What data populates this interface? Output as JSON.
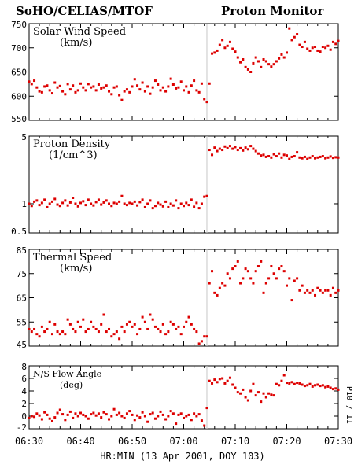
{
  "header": {
    "left_title": "SoHO/CELIAS/MTOF",
    "right_title": "Proton Monitor"
  },
  "x_axis": {
    "label": "HR:MIN (13 Apr 2001, DOY 103)",
    "ticks": [
      "06:30",
      "06:40",
      "06:50",
      "07:00",
      "07:10",
      "07:20",
      "07:30"
    ]
  },
  "side_label": "P10 / II",
  "colors": {
    "points": "#dd0000",
    "axes": "#000000",
    "marker_line": "#c8c8c8"
  },
  "chart_data": [
    {
      "type": "scatter",
      "title": "Solar Wind Speed",
      "unit_label": "(km/s)",
      "x_unit": "minutes after 06:30",
      "xlim": [
        0,
        60
      ],
      "ylim": [
        550,
        750
      ],
      "yscale": "linear",
      "yticks": [
        550,
        600,
        650,
        700,
        750
      ],
      "ytick_labels": [
        "550",
        "600",
        "650",
        "700",
        "750"
      ],
      "shock_marker_x": 34.5,
      "x": [
        0.0,
        0.5,
        1.0,
        1.5,
        2.0,
        2.5,
        3.0,
        3.5,
        4.0,
        4.5,
        5.0,
        5.5,
        6.0,
        6.5,
        7.0,
        7.5,
        8.0,
        8.5,
        9.0,
        9.5,
        10.0,
        10.5,
        11.0,
        11.5,
        12.0,
        12.5,
        13.0,
        13.5,
        14.0,
        14.5,
        15.0,
        15.5,
        16.0,
        16.5,
        17.0,
        17.5,
        18.0,
        18.5,
        19.0,
        19.5,
        20.0,
        20.5,
        21.0,
        21.5,
        22.0,
        22.5,
        23.0,
        23.5,
        24.0,
        24.5,
        25.0,
        25.5,
        26.0,
        26.5,
        27.0,
        27.5,
        28.0,
        28.5,
        29.0,
        29.5,
        30.0,
        30.5,
        31.0,
        31.5,
        32.0,
        32.5,
        33.0,
        33.5,
        34.0,
        34.5,
        35.0,
        35.5,
        36.0,
        36.5,
        37.0,
        37.5,
        38.0,
        38.5,
        39.0,
        39.5,
        40.0,
        40.5,
        41.0,
        41.5,
        42.0,
        42.5,
        43.0,
        43.5,
        44.0,
        44.5,
        45.0,
        45.5,
        46.0,
        46.5,
        47.0,
        47.5,
        48.0,
        48.5,
        49.0,
        49.5,
        50.0,
        50.5,
        51.0,
        51.5,
        52.0,
        52.5,
        53.0,
        53.5,
        54.0,
        54.5,
        55.0,
        55.5,
        56.0,
        56.5,
        57.0,
        57.5,
        58.0,
        58.5,
        59.0,
        59.5,
        60.0
      ],
      "y": [
        630,
        625,
        632,
        618,
        610,
        608,
        620,
        622,
        612,
        606,
        628,
        618,
        621,
        610,
        604,
        625,
        614,
        622,
        608,
        612,
        626,
        618,
        612,
        625,
        618,
        620,
        612,
        624,
        616,
        618,
        622,
        610,
        604,
        618,
        620,
        602,
        592,
        610,
        614,
        608,
        620,
        635,
        622,
        614,
        628,
        610,
        620,
        605,
        618,
        632,
        624,
        612,
        618,
        610,
        620,
        636,
        624,
        616,
        618,
        630,
        612,
        620,
        608,
        622,
        632,
        612,
        608,
        626,
        594,
        588,
        626,
        688,
        690,
        694,
        706,
        716,
        700,
        704,
        712,
        698,
        692,
        680,
        670,
        676,
        660,
        655,
        650,
        668,
        680,
        672,
        660,
        676,
        672,
        666,
        661,
        666,
        672,
        678,
        686,
        680,
        690,
        740,
        716,
        722,
        728,
        706,
        702,
        712,
        698,
        694,
        700,
        702,
        694,
        692,
        702,
        700,
        704,
        696,
        712,
        708,
        714
      ]
    },
    {
      "type": "scatter",
      "title": "Proton Density",
      "unit_label": "(1/cm^3)",
      "x_unit": "minutes after 06:30",
      "xlim": [
        0,
        60
      ],
      "ylim": [
        0.5,
        5
      ],
      "yscale": "log",
      "yticks": [
        0.5,
        1,
        5
      ],
      "ytick_labels": [
        "0.5",
        "1",
        "5"
      ],
      "shock_marker_x": 34.5,
      "x": [
        0.0,
        0.5,
        1.0,
        1.5,
        2.0,
        2.5,
        3.0,
        3.5,
        4.0,
        4.5,
        5.0,
        5.5,
        6.0,
        6.5,
        7.0,
        7.5,
        8.0,
        8.5,
        9.0,
        9.5,
        10.0,
        10.5,
        11.0,
        11.5,
        12.0,
        12.5,
        13.0,
        13.5,
        14.0,
        14.5,
        15.0,
        15.5,
        16.0,
        16.5,
        17.0,
        17.5,
        18.0,
        18.5,
        19.0,
        19.5,
        20.0,
        20.5,
        21.0,
        21.5,
        22.0,
        22.5,
        23.0,
        23.5,
        24.0,
        24.5,
        25.0,
        25.5,
        26.0,
        26.5,
        27.0,
        27.5,
        28.0,
        28.5,
        29.0,
        29.5,
        30.0,
        30.5,
        31.0,
        31.5,
        32.0,
        32.5,
        33.0,
        33.5,
        34.0,
        34.5,
        35.0,
        35.5,
        36.0,
        36.5,
        37.0,
        37.5,
        38.0,
        38.5,
        39.0,
        39.5,
        40.0,
        40.5,
        41.0,
        41.5,
        42.0,
        42.5,
        43.0,
        43.5,
        44.0,
        44.5,
        45.0,
        45.5,
        46.0,
        46.5,
        47.0,
        47.5,
        48.0,
        48.5,
        49.0,
        49.5,
        50.0,
        50.5,
        51.0,
        51.5,
        52.0,
        52.5,
        53.0,
        53.5,
        54.0,
        54.5,
        55.0,
        55.5,
        56.0,
        56.5,
        57.0,
        57.5,
        58.0,
        58.5,
        59.0,
        59.5,
        60.0
      ],
      "y": [
        1.0,
        0.95,
        1.05,
        1.08,
        0.97,
        1.02,
        1.1,
        0.92,
        1.0,
        1.05,
        1.12,
        0.98,
        0.95,
        1.02,
        1.08,
        0.96,
        1.03,
        1.15,
        1.0,
        0.94,
        1.02,
        1.06,
        0.97,
        1.1,
        1.0,
        0.96,
        1.04,
        1.1,
        0.98,
        1.03,
        1.08,
        1.0,
        0.95,
        1.02,
        1.0,
        1.05,
        1.2,
        1.0,
        0.97,
        1.02,
        1.0,
        1.05,
        0.96,
        1.04,
        1.1,
        0.92,
        1.0,
        1.08,
        0.9,
        0.95,
        1.02,
        0.98,
        0.94,
        1.05,
        0.92,
        1.0,
        0.96,
        1.08,
        0.9,
        1.0,
        0.95,
        1.02,
        0.97,
        1.1,
        0.93,
        1.02,
        0.9,
        1.0,
        1.18,
        1.2,
        3.6,
        3.2,
        3.8,
        3.5,
        3.7,
        3.6,
        3.9,
        3.75,
        3.95,
        3.7,
        3.85,
        3.6,
        3.75,
        3.55,
        3.8,
        3.65,
        3.95,
        3.7,
        3.5,
        3.3,
        3.15,
        3.2,
        3.05,
        3.1,
        3.0,
        3.25,
        3.1,
        3.3,
        3.0,
        3.2,
        3.15,
        2.9,
        3.05,
        3.1,
        3.4,
        3.0,
        2.95,
        3.05,
        2.9,
        3.0,
        3.1,
        2.95,
        3.0,
        3.05,
        3.1,
        2.95,
        3.0,
        3.08,
        2.98,
        3.02,
        3.0
      ]
    },
    {
      "type": "scatter",
      "title": "Thermal Speed",
      "unit_label": "(km/s)",
      "x_unit": "minutes after 06:30",
      "xlim": [
        0,
        60
      ],
      "ylim": [
        45,
        85
      ],
      "yscale": "linear",
      "yticks": [
        45,
        55,
        65,
        75,
        85
      ],
      "ytick_labels": [
        "45",
        "55",
        "65",
        "75",
        "85"
      ],
      "shock_marker_x": 34.5,
      "x": [
        0.0,
        0.5,
        1.0,
        1.5,
        2.0,
        2.5,
        3.0,
        3.5,
        4.0,
        4.5,
        5.0,
        5.5,
        6.0,
        6.5,
        7.0,
        7.5,
        8.0,
        8.5,
        9.0,
        9.5,
        10.0,
        10.5,
        11.0,
        11.5,
        12.0,
        12.5,
        13.0,
        13.5,
        14.0,
        14.5,
        15.0,
        15.5,
        16.0,
        16.5,
        17.0,
        17.5,
        18.0,
        18.5,
        19.0,
        19.5,
        20.0,
        20.5,
        21.0,
        21.5,
        22.0,
        22.5,
        23.0,
        23.5,
        24.0,
        24.5,
        25.0,
        25.5,
        26.0,
        26.5,
        27.0,
        27.5,
        28.0,
        28.5,
        29.0,
        29.5,
        30.0,
        30.5,
        31.0,
        31.5,
        32.0,
        32.5,
        33.0,
        33.5,
        34.0,
        34.5,
        35.0,
        35.5,
        36.0,
        36.5,
        37.0,
        37.5,
        38.0,
        38.5,
        39.0,
        39.5,
        40.0,
        40.5,
        41.0,
        41.5,
        42.0,
        42.5,
        43.0,
        43.5,
        44.0,
        44.5,
        45.0,
        45.5,
        46.0,
        46.5,
        47.0,
        47.5,
        48.0,
        48.5,
        49.0,
        49.5,
        50.0,
        50.5,
        51.0,
        51.5,
        52.0,
        52.5,
        53.0,
        53.5,
        54.0,
        54.5,
        55.0,
        55.5,
        56.0,
        56.5,
        57.0,
        57.5,
        58.0,
        58.5,
        59.0,
        59.5,
        60.0
      ],
      "y": [
        52,
        51,
        52,
        50,
        49,
        53,
        51,
        52,
        55,
        50,
        54,
        51,
        50,
        51,
        50,
        56,
        54,
        52,
        51,
        55,
        53,
        56,
        51,
        52,
        55,
        53,
        52,
        51,
        54,
        58,
        51,
        52,
        49,
        50,
        51,
        48,
        53,
        51,
        54,
        55,
        53,
        54,
        50,
        52,
        57,
        55,
        52,
        58,
        56,
        53,
        52,
        51,
        54,
        50,
        51,
        55,
        54,
        52,
        53,
        50,
        53,
        55,
        57,
        54,
        52,
        51,
        46,
        47,
        49,
        49,
        71,
        76,
        67,
        66,
        69,
        71,
        70,
        75,
        73,
        77,
        78,
        80,
        71,
        73,
        77,
        76,
        73,
        71,
        76,
        78,
        80,
        67,
        71,
        73,
        78,
        75,
        73,
        77,
        78,
        76,
        70,
        73,
        64,
        72,
        73,
        68,
        70,
        67,
        68,
        67,
        68,
        66,
        69,
        68,
        67,
        68,
        68,
        66,
        69,
        67,
        68
      ]
    },
    {
      "type": "scatter",
      "title": "N/S Flow Angle",
      "unit_label": "(deg)",
      "x_unit": "minutes after 06:30",
      "xlim": [
        0,
        60
      ],
      "ylim": [
        -2,
        8
      ],
      "yscale": "linear",
      "yticks": [
        -2,
        0,
        2,
        4,
        6,
        8
      ],
      "ytick_labels": [
        "-2",
        "0",
        "2",
        "4",
        "6",
        "8"
      ],
      "shock_marker_x": 34.5,
      "x": [
        0.0,
        0.5,
        1.0,
        1.5,
        2.0,
        2.5,
        3.0,
        3.5,
        4.0,
        4.5,
        5.0,
        5.5,
        6.0,
        6.5,
        7.0,
        7.5,
        8.0,
        8.5,
        9.0,
        9.5,
        10.0,
        10.5,
        11.0,
        11.5,
        12.0,
        12.5,
        13.0,
        13.5,
        14.0,
        14.5,
        15.0,
        15.5,
        16.0,
        16.5,
        17.0,
        17.5,
        18.0,
        18.5,
        19.0,
        19.5,
        20.0,
        20.5,
        21.0,
        21.5,
        22.0,
        22.5,
        23.0,
        23.5,
        24.0,
        24.5,
        25.0,
        25.5,
        26.0,
        26.5,
        27.0,
        27.5,
        28.0,
        28.5,
        29.0,
        29.5,
        30.0,
        30.5,
        31.0,
        31.5,
        32.0,
        32.5,
        33.0,
        33.5,
        34.0,
        34.5,
        35.0,
        35.5,
        36.0,
        36.5,
        37.0,
        37.5,
        38.0,
        38.5,
        39.0,
        39.5,
        40.0,
        40.5,
        41.0,
        41.5,
        42.0,
        42.5,
        43.0,
        43.5,
        44.0,
        44.5,
        45.0,
        45.5,
        46.0,
        46.5,
        47.0,
        47.5,
        48.0,
        48.5,
        49.0,
        49.5,
        50.0,
        50.5,
        51.0,
        51.5,
        52.0,
        52.5,
        53.0,
        53.5,
        54.0,
        54.5,
        55.0,
        55.5,
        56.0,
        56.5,
        57.0,
        57.5,
        58.0,
        58.5,
        59.0,
        59.5,
        60.0
      ],
      "y": [
        -0.3,
        0.0,
        -0.1,
        0.4,
        0.1,
        -0.5,
        0.6,
        0.2,
        -0.4,
        -0.8,
        -0.2,
        0.5,
        1.0,
        0.3,
        -0.6,
        0.2,
        0.7,
        -0.3,
        0.4,
        0.0,
        0.5,
        0.2,
        0.0,
        -0.4,
        0.3,
        0.5,
        0.1,
        0.4,
        -0.2,
        0.6,
        0.3,
        -0.5,
        0.0,
        1.1,
        0.2,
        0.5,
        0.0,
        -0.3,
        0.4,
        0.8,
        0.2,
        -0.6,
        0.1,
        -0.2,
        0.6,
        0.0,
        -0.9,
        0.3,
        0.5,
        -0.4,
        0.0,
        0.7,
        0.2,
        -0.5,
        0.0,
        0.8,
        0.4,
        -1.2,
        0.2,
        0.4,
        -0.3,
        0.0,
        0.2,
        -0.6,
        0.4,
        0.0,
        0.3,
        -0.7,
        -1.5,
        1.3,
        5.6,
        5.2,
        5.8,
        5.4,
        5.9,
        6.0,
        5.2,
        5.6,
        6.1,
        5.0,
        4.5,
        3.8,
        3.6,
        4.2,
        3.0,
        2.5,
        4.0,
        5.1,
        3.3,
        3.8,
        2.3,
        3.6,
        3.0,
        3.6,
        3.4,
        3.3,
        5.1,
        4.9,
        5.6,
        6.5,
        5.3,
        5.2,
        5.4,
        5.1,
        5.3,
        5.2,
        5.0,
        4.8,
        4.9,
        5.1,
        4.7,
        4.9,
        5.0,
        4.8,
        4.9,
        4.6,
        4.7,
        4.5,
        4.3,
        4.4,
        4.2
      ]
    }
  ]
}
